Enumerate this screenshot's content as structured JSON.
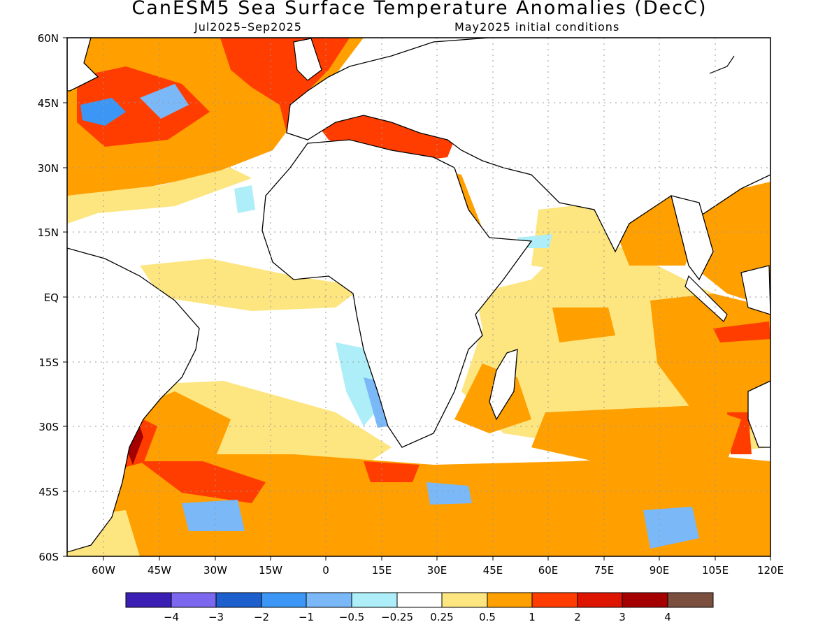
{
  "title": "CanESM5 Sea Surface Temperature Anomalies (DecC)",
  "subtitle_left": "Jul2025–Sep2025",
  "subtitle_right": "May2025 initial conditions",
  "lat_labels": [
    "60N",
    "45N",
    "30N",
    "15N",
    "EQ",
    "15S",
    "30S",
    "45S",
    "60S"
  ],
  "lon_labels": [
    "60W",
    "45W",
    "30W",
    "15W",
    "0",
    "15E",
    "30E",
    "45E",
    "60E",
    "75E",
    "90E",
    "105E",
    "120E"
  ],
  "colorbar": {
    "colors": [
      "#3b1fb5",
      "#7b68ee",
      "#1c5fcd",
      "#3c96f5",
      "#7ab8f8",
      "#aeeef8",
      "#ffffff",
      "#fde580",
      "#ff9f00",
      "#ff3d00",
      "#dd1500",
      "#a50000",
      "#7a4f3f"
    ],
    "tick_labels": [
      "−4",
      "−3",
      "−2",
      "−1",
      "−0.5",
      "−0.25",
      "0.25",
      "0.5",
      "1",
      "2",
      "3",
      "4"
    ]
  }
}
